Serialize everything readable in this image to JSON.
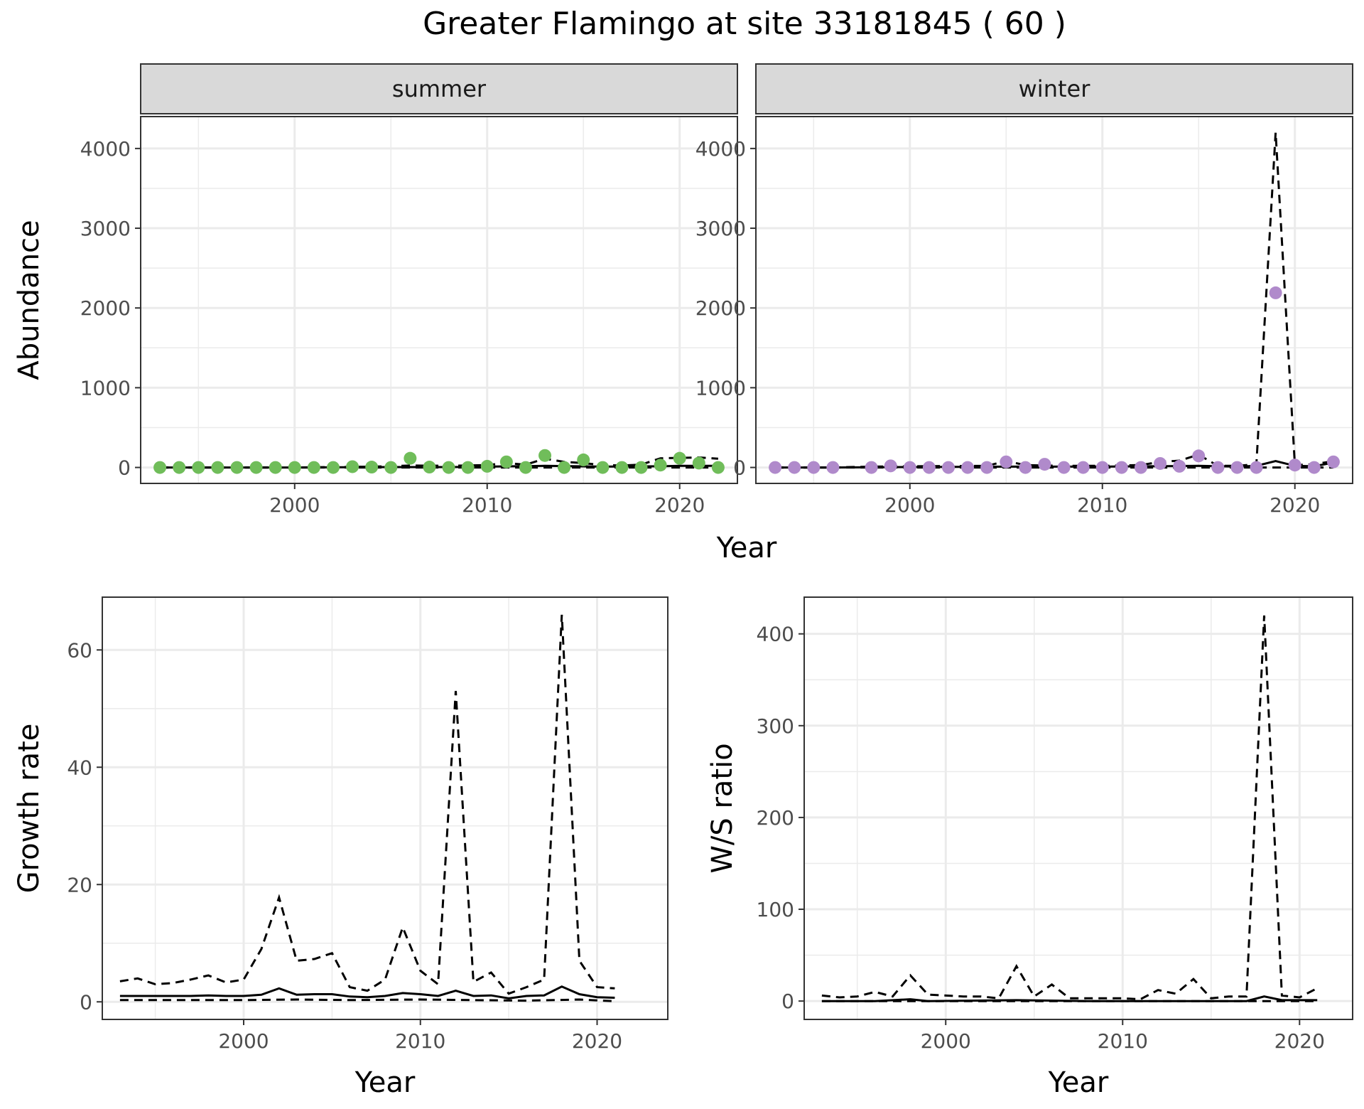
{
  "title": "Greater Flamingo at site 33181845 ( 60 )",
  "chart_data": [
    {
      "id": "summer",
      "type": "line",
      "strip": "summer",
      "ylabel": "Abundance",
      "xlabel": "Year",
      "xlim": [
        1992,
        2023
      ],
      "ylim": [
        -200,
        4400
      ],
      "x_ticks": [
        2000,
        2010,
        2020
      ],
      "y_ticks": [
        0,
        1000,
        2000,
        3000,
        4000
      ],
      "point_color": "#70BD5A",
      "points": {
        "x": [
          1993,
          1994,
          1995,
          1996,
          1997,
          1998,
          1999,
          2000,
          2001,
          2002,
          2003,
          2004,
          2005,
          2006,
          2007,
          2008,
          2009,
          2010,
          2011,
          2012,
          2013,
          2014,
          2015,
          2016,
          2017,
          2018,
          2019,
          2020,
          2021,
          2022
        ],
        "y": [
          0,
          0,
          0,
          0,
          0,
          0,
          0,
          0,
          0,
          0,
          10,
          5,
          0,
          115,
          5,
          0,
          0,
          15,
          70,
          0,
          150,
          0,
          95,
          0,
          0,
          0,
          30,
          115,
          55,
          0
        ]
      },
      "mean_line": {
        "x": [
          1993,
          1995,
          2000,
          2005,
          2008,
          2010,
          2013,
          2016,
          2019,
          2020,
          2021,
          2022
        ],
        "y": [
          0,
          0,
          0,
          5,
          5,
          10,
          20,
          10,
          15,
          20,
          20,
          20
        ]
      },
      "upper_line": {
        "x": [
          1993,
          1995,
          2000,
          2004,
          2005,
          2006,
          2008,
          2010,
          2011,
          2012,
          2013,
          2014,
          2015,
          2016,
          2017,
          2018,
          2019,
          2020,
          2021,
          2022
        ],
        "y": [
          0,
          0,
          0,
          10,
          15,
          25,
          20,
          30,
          55,
          35,
          110,
          70,
          55,
          30,
          25,
          35,
          115,
          120,
          125,
          110
        ]
      },
      "lower_line": {
        "x": [
          1993,
          2022
        ],
        "y": [
          0,
          0
        ]
      }
    },
    {
      "id": "winter",
      "type": "line",
      "strip": "winter",
      "ylabel": "",
      "xlabel": "Year",
      "xlim": [
        1992,
        2023
      ],
      "ylim": [
        -200,
        4400
      ],
      "x_ticks": [
        2000,
        2010,
        2020
      ],
      "y_ticks": [
        0,
        1000,
        2000,
        3000,
        4000
      ],
      "point_color": "#B08ACB",
      "points": {
        "x": [
          1993,
          1994,
          1995,
          1996,
          1998,
          1999,
          2000,
          2001,
          2002,
          2003,
          2004,
          2005,
          2006,
          2007,
          2008,
          2009,
          2010,
          2011,
          2012,
          2013,
          2014,
          2015,
          2016,
          2017,
          2018,
          2019,
          2020,
          2021,
          2022
        ],
        "y": [
          0,
          0,
          0,
          0,
          0,
          20,
          0,
          0,
          0,
          0,
          0,
          70,
          0,
          40,
          0,
          0,
          0,
          0,
          0,
          50,
          15,
          145,
          0,
          0,
          0,
          2190,
          30,
          0,
          70
        ]
      },
      "mean_line": {
        "x": [
          1993,
          1996,
          2000,
          2005,
          2010,
          2015,
          2017,
          2018,
          2019,
          2020,
          2021,
          2022
        ],
        "y": [
          0,
          0,
          5,
          10,
          10,
          20,
          10,
          20,
          80,
          20,
          15,
          60
        ]
      },
      "upper_line": {
        "x": [
          1993,
          1996,
          1998,
          2000,
          2004,
          2005,
          2006,
          2008,
          2010,
          2012,
          2013,
          2014,
          2015,
          2016,
          2017,
          2018,
          2019,
          2020,
          2021,
          2022
        ],
        "y": [
          0,
          0,
          10,
          15,
          20,
          80,
          30,
          20,
          20,
          30,
          70,
          85,
          160,
          20,
          20,
          40,
          4200,
          30,
          40,
          80
        ]
      },
      "lower_line": {
        "x": [
          1993,
          2022
        ],
        "y": [
          0,
          0
        ]
      }
    },
    {
      "id": "growth",
      "type": "line",
      "ylabel": "Growth rate",
      "xlabel": "Year",
      "xlim": [
        1992,
        2024
      ],
      "ylim": [
        -3,
        69
      ],
      "x_ticks": [
        2000,
        2010,
        2020
      ],
      "y_ticks": [
        0,
        20,
        40,
        60
      ],
      "mean_line": {
        "x": [
          1993,
          1994,
          1995,
          1996,
          1997,
          1998,
          1999,
          2000,
          2001,
          2002,
          2003,
          2004,
          2005,
          2006,
          2007,
          2008,
          2009,
          2010,
          2011,
          2012,
          2013,
          2014,
          2015,
          2016,
          2017,
          2018,
          2019,
          2020,
          2021
        ],
        "y": [
          1.0,
          1.0,
          1.0,
          1.0,
          1.0,
          1.1,
          1.0,
          1.0,
          1.2,
          2.3,
          1.2,
          1.3,
          1.3,
          0.9,
          0.8,
          1.0,
          1.5,
          1.3,
          1.0,
          1.9,
          1.0,
          1.1,
          0.6,
          1.0,
          1.1,
          2.6,
          1.3,
          0.8,
          0.7
        ]
      },
      "upper_line": {
        "x": [
          1993,
          1994,
          1995,
          1996,
          1997,
          1998,
          1999,
          2000,
          2001,
          2002,
          2003,
          2004,
          2005,
          2006,
          2007,
          2008,
          2009,
          2010,
          2011,
          2012,
          2013,
          2014,
          2015,
          2016,
          2017,
          2018,
          2019,
          2020,
          2021
        ],
        "y": [
          3.5,
          4.0,
          3.0,
          3.2,
          3.8,
          4.5,
          3.3,
          3.8,
          9.0,
          17.8,
          7.0,
          7.3,
          8.3,
          2.5,
          1.9,
          3.8,
          12.7,
          5.3,
          3.0,
          53.0,
          3.4,
          5.0,
          1.4,
          2.5,
          3.8,
          66.0,
          7.0,
          2.5,
          2.3
        ]
      },
      "lower_line": {
        "x": [
          1993,
          1997,
          2000,
          2003,
          2006,
          2010,
          2013,
          2016,
          2019,
          2021
        ],
        "y": [
          0.3,
          0.3,
          0.3,
          0.4,
          0.3,
          0.4,
          0.3,
          0.2,
          0.4,
          0.1
        ]
      }
    },
    {
      "id": "ratio",
      "type": "line",
      "ylabel": "W/S ratio",
      "xlabel": "Year",
      "xlim": [
        1992,
        2023
      ],
      "ylim": [
        -20,
        440
      ],
      "x_ticks": [
        2000,
        2010,
        2020
      ],
      "y_ticks": [
        0,
        100,
        200,
        300,
        400
      ],
      "mean_line": {
        "x": [
          1993,
          1996,
          1998,
          1999,
          2004,
          2008,
          2012,
          2016,
          2017,
          2018,
          2019,
          2021
        ],
        "y": [
          0,
          0,
          2,
          0,
          1,
          0,
          0,
          0,
          0,
          5,
          1,
          1
        ]
      },
      "upper_line": {
        "x": [
          1993,
          1994,
          1995,
          1996,
          1997,
          1998,
          1999,
          2000,
          2001,
          2002,
          2003,
          2004,
          2005,
          2006,
          2007,
          2008,
          2009,
          2010,
          2011,
          2012,
          2013,
          2014,
          2015,
          2016,
          2017,
          2018,
          2019,
          2020,
          2021
        ],
        "y": [
          6,
          4,
          5,
          10,
          5,
          28,
          7,
          6,
          5,
          5,
          3,
          38,
          5,
          18,
          3,
          3,
          3,
          3,
          2,
          12,
          8,
          24,
          3,
          5,
          5,
          420,
          6,
          4,
          14
        ]
      },
      "lower_line": {
        "x": [
          1993,
          2021
        ],
        "y": [
          0,
          0
        ]
      }
    }
  ]
}
